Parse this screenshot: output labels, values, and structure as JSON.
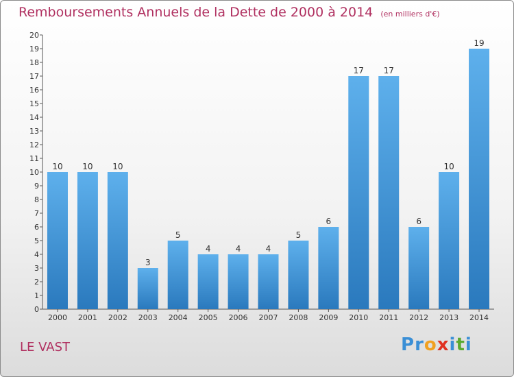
{
  "chart_data": {
    "type": "bar",
    "title": "Remboursements Annuels de la Dette de 2000 à 2014",
    "subtitle": "(en milliers d'€)",
    "categories": [
      "2000",
      "2001",
      "2002",
      "2003",
      "2004",
      "2005",
      "2006",
      "2007",
      "2008",
      "2009",
      "2010",
      "2011",
      "2012",
      "2013",
      "2014"
    ],
    "values": [
      10,
      10,
      10,
      3,
      5,
      4,
      4,
      4,
      5,
      6,
      17,
      17,
      6,
      10,
      19
    ],
    "ylim": [
      0,
      20
    ],
    "yticks": [
      0,
      1,
      2,
      3,
      4,
      5,
      6,
      7,
      8,
      9,
      10,
      11,
      12,
      13,
      14,
      15,
      16,
      17,
      18,
      19,
      20
    ],
    "grid": false,
    "bar_color": "#3a8fd6"
  },
  "place_name": "LE VAST",
  "brand": {
    "name": "Proxiti",
    "letters": [
      "P",
      "r",
      "o",
      "x",
      "i",
      "t",
      "i"
    ],
    "letter_colors": [
      "#3a8fd6",
      "#3a8fd6",
      "#f0a020",
      "#e03020",
      "#3a8fd6",
      "#5aaa30",
      "#3a8fd6"
    ]
  }
}
